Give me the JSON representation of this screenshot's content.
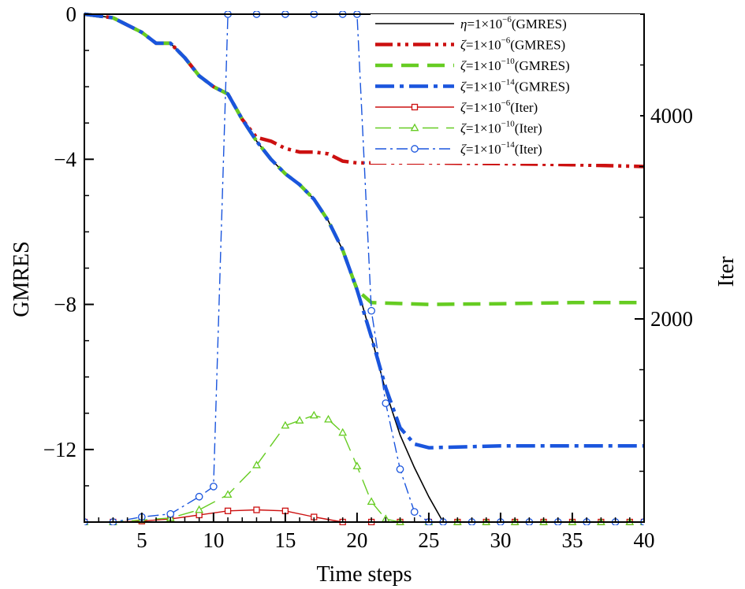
{
  "chart_data": {
    "type": "line",
    "title": "",
    "xlabel": "Time steps",
    "ylabel": "GMRES",
    "y2label": "Iter",
    "xlim": [
      1,
      40
    ],
    "ylim": [
      -14,
      0
    ],
    "y2lim": [
      0,
      5000
    ],
    "x_ticks": [
      5,
      10,
      15,
      20,
      25,
      30,
      35,
      40
    ],
    "x_tick_labels": [
      "5",
      "10",
      "15",
      "20",
      "25",
      "30",
      "35",
      "40"
    ],
    "y_ticks": [
      0,
      -4,
      -8,
      -12
    ],
    "y_tick_labels": [
      "0",
      "−4",
      "−8",
      "−12"
    ],
    "y2_ticks": [
      2000,
      4000
    ],
    "y2_tick_labels": [
      "2000",
      "4000"
    ],
    "legend_position": "top-right",
    "colors": {
      "black": "#000000",
      "red": "#cc1010",
      "green": "#66cc22",
      "blue": "#1a55dd"
    },
    "series": [
      {
        "name": "η=1×10⁻⁶(GMRES)",
        "sym": "η",
        "exp": "−6",
        "tail": "(GMRES)",
        "axis": "left",
        "color": "#000000",
        "style": "solid",
        "width": 1.6,
        "marker": "none",
        "x": [
          1,
          3,
          5,
          6,
          7,
          8,
          9,
          10,
          11,
          12,
          13,
          14,
          15,
          16,
          17,
          18,
          19,
          20,
          21,
          22,
          23,
          24,
          25,
          26
        ],
        "y": [
          0,
          -0.1,
          -0.5,
          -0.8,
          -0.8,
          -1.2,
          -1.7,
          -2.0,
          -2.2,
          -2.9,
          -3.5,
          -4.0,
          -4.4,
          -4.7,
          -5.1,
          -5.7,
          -6.5,
          -7.5,
          -8.9,
          -10.4,
          -11.6,
          -12.5,
          -13.3,
          -14
        ]
      },
      {
        "name": "ζ=1×10⁻⁶(GMRES)",
        "sym": "ζ",
        "exp": "−6",
        "tail": "(GMRES)",
        "axis": "left",
        "color": "#cc1010",
        "style": "dashdotdot",
        "width": 4.5,
        "marker": "none",
        "x": [
          1,
          3,
          5,
          6,
          7,
          8,
          9,
          10,
          11,
          12,
          13,
          14,
          15,
          16,
          17,
          18,
          19,
          20,
          21,
          25,
          30,
          35,
          40
        ],
        "y": [
          0,
          -0.1,
          -0.5,
          -0.8,
          -0.8,
          -1.2,
          -1.7,
          -2.0,
          -2.2,
          -2.9,
          -3.4,
          -3.5,
          -3.7,
          -3.8,
          -3.8,
          -3.85,
          -4.05,
          -4.1,
          -4.1,
          -4.1,
          -4.12,
          -4.15,
          -4.2
        ]
      },
      {
        "name": "ζ=1×10⁻¹⁰(GMRES)",
        "sym": "ζ",
        "exp": "−10",
        "tail": "(GMRES)",
        "axis": "left",
        "color": "#66cc22",
        "style": "dashed",
        "width": 4.5,
        "marker": "none",
        "x": [
          1,
          3,
          5,
          6,
          7,
          8,
          9,
          10,
          11,
          12,
          13,
          14,
          15,
          16,
          17,
          18,
          19,
          20,
          21,
          25,
          30,
          35,
          40
        ],
        "y": [
          0,
          -0.1,
          -0.5,
          -0.8,
          -0.8,
          -1.2,
          -1.7,
          -2.0,
          -2.2,
          -2.9,
          -3.5,
          -4.0,
          -4.4,
          -4.7,
          -5.1,
          -5.7,
          -6.5,
          -7.6,
          -7.95,
          -8.0,
          -7.98,
          -7.95,
          -7.95
        ]
      },
      {
        "name": "ζ=1×10⁻¹⁴(GMRES)",
        "sym": "ζ",
        "exp": "−14",
        "tail": "(GMRES)",
        "axis": "left",
        "color": "#1a55dd",
        "style": "dashdot",
        "width": 4.5,
        "marker": "none",
        "x": [
          1,
          3,
          5,
          6,
          7,
          8,
          9,
          10,
          11,
          12,
          13,
          14,
          15,
          16,
          17,
          18,
          19,
          20,
          21,
          22,
          23,
          24,
          25,
          30,
          35,
          40
        ],
        "y": [
          0,
          -0.1,
          -0.5,
          -0.8,
          -0.8,
          -1.2,
          -1.7,
          -2.0,
          -2.2,
          -2.9,
          -3.5,
          -4.0,
          -4.4,
          -4.7,
          -5.1,
          -5.7,
          -6.5,
          -7.6,
          -8.9,
          -10.3,
          -11.4,
          -11.85,
          -11.95,
          -11.9,
          -11.9,
          -11.9
        ]
      },
      {
        "name": "ζ=1×10⁻⁶(Iter)",
        "sym": "ζ",
        "exp": "−6",
        "tail": "(Iter)",
        "axis": "right",
        "color": "#cc1010",
        "style": "solid",
        "width": 1.4,
        "marker": "square",
        "x": [
          1,
          3,
          5,
          7,
          9,
          11,
          13,
          15,
          17,
          19,
          21,
          23,
          25,
          27,
          29,
          31,
          33,
          35,
          37,
          39,
          40
        ],
        "y": [
          0,
          0,
          10,
          30,
          70,
          110,
          120,
          110,
          50,
          0,
          0,
          0,
          0,
          0,
          0,
          0,
          0,
          0,
          0,
          0,
          0
        ]
      },
      {
        "name": "ζ=1×10⁻¹⁰(Iter)",
        "sym": "ζ",
        "exp": "−10",
        "tail": "(Iter)",
        "axis": "right",
        "color": "#66cc22",
        "style": "longdash",
        "width": 1.4,
        "marker": "triangle",
        "x": [
          1,
          3,
          5,
          7,
          9,
          11,
          13,
          15,
          16,
          17,
          18,
          19,
          20,
          21,
          22,
          23,
          25,
          27,
          29,
          31,
          33,
          35,
          37,
          39,
          40
        ],
        "y": [
          0,
          0,
          20,
          40,
          120,
          270,
          560,
          950,
          1000,
          1050,
          1010,
          880,
          550,
          200,
          30,
          0,
          0,
          0,
          0,
          0,
          0,
          0,
          0,
          0,
          0
        ]
      },
      {
        "name": "ζ=1×10⁻¹⁴(Iter)",
        "sym": "ζ",
        "exp": "−14",
        "tail": "(Iter)",
        "axis": "right",
        "color": "#1a55dd",
        "style": "dashdot",
        "width": 1.4,
        "marker": "circle",
        "x": [
          1,
          3,
          5,
          7,
          9,
          10,
          11,
          13,
          15,
          17,
          19,
          20,
          21,
          22,
          23,
          24,
          25,
          26,
          28,
          30,
          32,
          34,
          36,
          38,
          40
        ],
        "y": [
          0,
          0,
          50,
          80,
          250,
          350,
          5000,
          5000,
          5000,
          5000,
          5000,
          5000,
          2080,
          1170,
          520,
          100,
          0,
          0,
          0,
          0,
          0,
          0,
          0,
          0,
          0
        ]
      }
    ]
  }
}
